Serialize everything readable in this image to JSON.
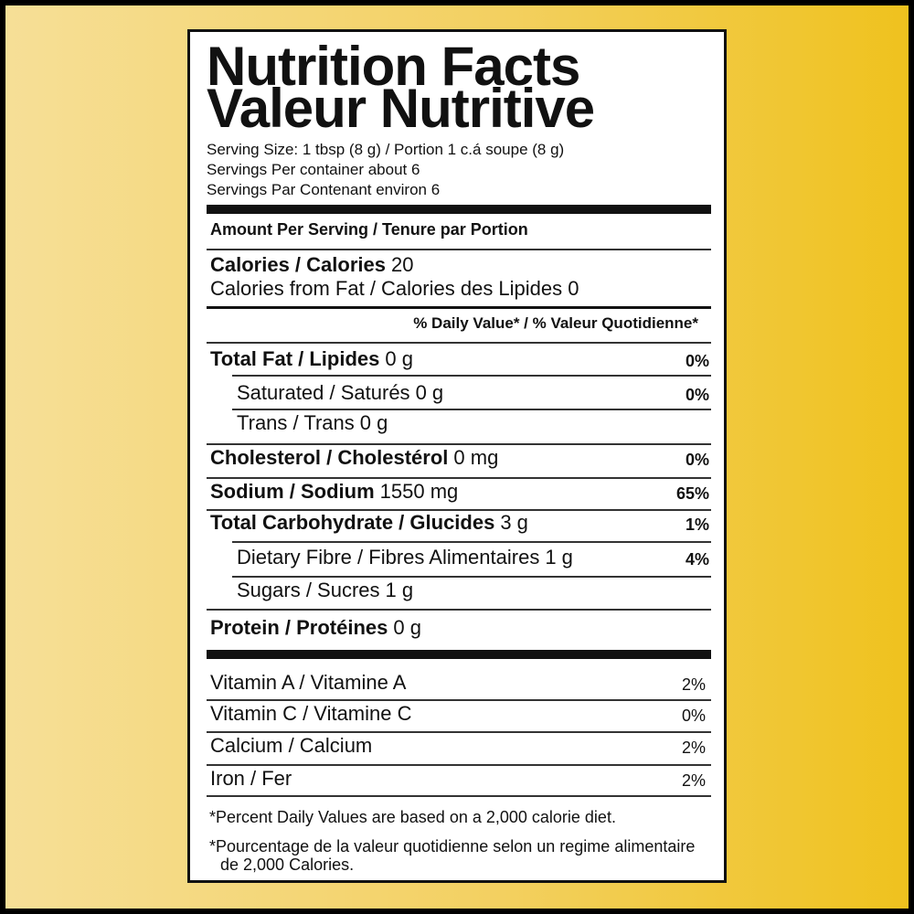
{
  "header": {
    "title_lines": [
      "Nutrition Facts",
      "Valeur Nutritive"
    ],
    "serving_lines": [
      "Serving Size: 1 tbsp (8 g) / Portion 1 c.á soupe (8 g)",
      "Servings Per container about 6",
      "Servings Par Contenant environ 6"
    ]
  },
  "amount_header": "Amount Per Serving / Tenure par Portion",
  "calories": {
    "label": "Calories / Calories",
    "amount": "20"
  },
  "calories_from_fat": "Calories from Fat / Calories des Lipides 0",
  "daily_value_header": "% Daily Value* / % Valeur Quotidienne*",
  "nutrients": [
    {
      "label": "Total Fat / Lipides",
      "amount": "0 g",
      "dv": "0%",
      "sub": [
        {
          "label": "Saturated / Saturés",
          "amount": "0 g",
          "dv": "0%"
        },
        {
          "label": "Trans / Trans",
          "amount": "0 g"
        }
      ]
    },
    {
      "label": "Cholesterol / Cholestérol",
      "amount": "0 mg",
      "dv": "0%"
    },
    {
      "label": "Sodium / Sodium",
      "amount": "1550 mg",
      "dv": "65%"
    },
    {
      "label": "Total Carbohydrate / Glucides",
      "amount": "3 g",
      "dv": "1%",
      "sub": [
        {
          "label": "Dietary Fibre / Fibres Alimentaires",
          "amount": "1 g",
          "dv": "4%"
        },
        {
          "label": "Sugars / Sucres",
          "amount": "1 g"
        }
      ]
    },
    {
      "label": "Protein / Protéines",
      "amount": "0 g"
    }
  ],
  "vitamins": [
    {
      "label": "Vitamin A / Vitamine A",
      "dv": "2%"
    },
    {
      "label": "Vitamin C / Vitamine C",
      "dv": "0%"
    },
    {
      "label": "Calcium / Calcium",
      "dv": "2%"
    },
    {
      "label": "Iron / Fer",
      "dv": "2%"
    }
  ],
  "footnotes": [
    "Percent Daily Values are based on a 2,000 calorie diet.",
    "Pourcentage de la valeur quotidienne selon un regime alimentaire de 2,000 Calories."
  ]
}
